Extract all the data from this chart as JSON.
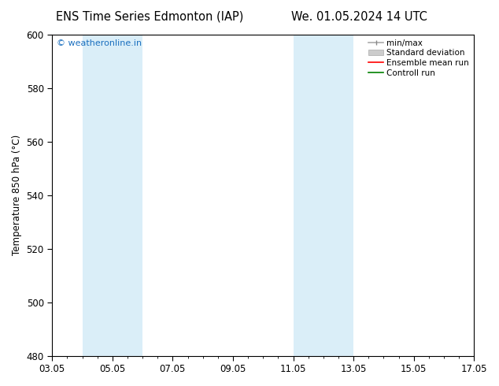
{
  "title_left": "ENS Time Series Edmonton (IAP)",
  "title_right": "We. 01.05.2024 14 UTC",
  "ylabel": "Temperature 850 hPa (°C)",
  "ylim": [
    480,
    600
  ],
  "yticks": [
    480,
    500,
    520,
    540,
    560,
    580,
    600
  ],
  "xtick_labels": [
    "03.05",
    "05.05",
    "07.05",
    "09.05",
    "11.05",
    "13.05",
    "15.05",
    "17.05"
  ],
  "xtick_positions": [
    0,
    2,
    4,
    6,
    8,
    10,
    12,
    14
  ],
  "shaded_bands": [
    {
      "x_start": 1.0,
      "x_end": 3.0,
      "color": "#daeef8"
    },
    {
      "x_start": 8.0,
      "x_end": 10.0,
      "color": "#daeef8"
    }
  ],
  "watermark_text": "© weatheronline.in",
  "watermark_color": "#1a6fbf",
  "background_color": "#ffffff",
  "xlim": [
    0,
    14
  ],
  "minor_tick_step": 0.5
}
